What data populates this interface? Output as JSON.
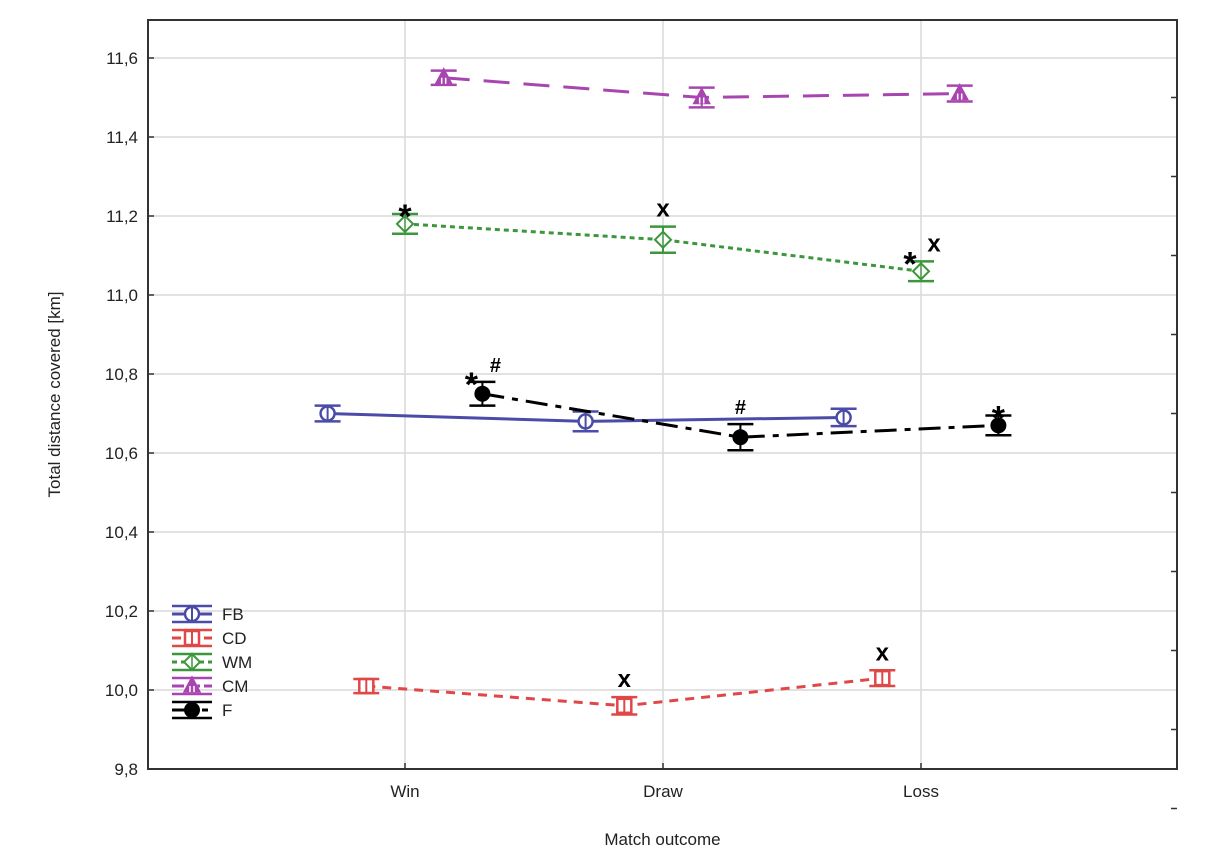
{
  "chart_data": {
    "type": "line",
    "title": "",
    "xlabel": "Match outcome",
    "ylabel": "Total distance covered [km]",
    "categories": [
      "Win",
      "Draw",
      "Loss"
    ],
    "ylim": [
      9.8,
      11.7
    ],
    "yticks": [
      9.8,
      10.0,
      10.2,
      10.4,
      10.6,
      10.8,
      11.0,
      11.2,
      11.4,
      11.6
    ],
    "ytick_labels": [
      "9,8",
      "10,0",
      "10,2",
      "10,4",
      "10,6",
      "10,8",
      "11,0",
      "11,2",
      "11,4",
      "11,6"
    ],
    "grid": true,
    "legend_position": "bottom-left",
    "error_bars": "mean ± error",
    "series": [
      {
        "name": "FB",
        "color": "#4b4ba8",
        "marker": "circle-open",
        "line": "solid",
        "offset": -0.3,
        "values": [
          10.7,
          10.68,
          10.69
        ],
        "errors": [
          0.02,
          0.025,
          0.022
        ],
        "annotations": [
          "",
          "",
          ""
        ]
      },
      {
        "name": "CD",
        "color": "#e04747",
        "marker": "square-open",
        "line": "dash-short",
        "offset": -0.15,
        "values": [
          10.01,
          9.96,
          10.03
        ],
        "errors": [
          0.018,
          0.022,
          0.02
        ],
        "annotations": [
          "",
          "x",
          "x"
        ]
      },
      {
        "name": "WM",
        "color": "#3c963c",
        "marker": "diamond-open",
        "line": "dotted",
        "offset": 0,
        "values": [
          11.18,
          11.14,
          11.06
        ],
        "errors": [
          0.025,
          0.033,
          0.025
        ],
        "annotations": [
          "*",
          "x",
          "* x"
        ]
      },
      {
        "name": "CM",
        "color": "#a845b0",
        "marker": "triangle",
        "line": "dash-long",
        "offset": 0.15,
        "values": [
          11.55,
          11.5,
          11.51
        ],
        "errors": [
          0.018,
          0.025,
          0.02
        ],
        "annotations": [
          "",
          "",
          ""
        ]
      },
      {
        "name": "F",
        "color": "#000000",
        "marker": "circle-filled",
        "line": "dash-dot",
        "offset": 0.3,
        "values": [
          10.75,
          10.64,
          10.67
        ],
        "errors": [
          0.03,
          0.033,
          0.025
        ],
        "annotations": [
          "* #",
          "#",
          "*"
        ]
      }
    ]
  }
}
